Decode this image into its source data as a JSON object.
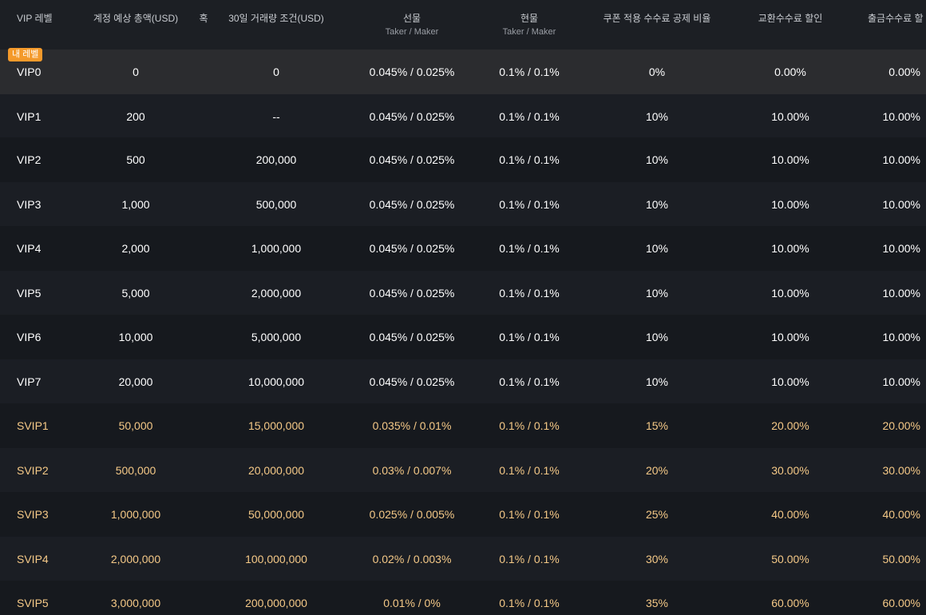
{
  "columns": {
    "level": "VIP 레벨",
    "assets": "계정 예상 총액(USD)",
    "or": "혹",
    "volume": "30일 거래량 조건(USD)",
    "futures": "선물",
    "futures_sub": "Taker / Maker",
    "spot": "현물",
    "spot_sub": "Taker / Maker",
    "coupon": "쿠폰 적용 수수료 공제 비율",
    "exchange": "교환수수료 할인",
    "withdraw": "출금수수료 할"
  },
  "current_badge": "내 레벨",
  "rows": [
    {
      "level": "VIP0",
      "assets": "0",
      "volume": "0",
      "futures": "0.045% / 0.025%",
      "spot": "0.1% / 0.1%",
      "coupon": "0%",
      "exchange": "0.00%",
      "withdraw": "0.00%"
    },
    {
      "level": "VIP1",
      "assets": "200",
      "volume": "--",
      "futures": "0.045% / 0.025%",
      "spot": "0.1% / 0.1%",
      "coupon": "10%",
      "exchange": "10.00%",
      "withdraw": "10.00%"
    },
    {
      "level": "VIP2",
      "assets": "500",
      "volume": "200,000",
      "futures": "0.045% / 0.025%",
      "spot": "0.1% / 0.1%",
      "coupon": "10%",
      "exchange": "10.00%",
      "withdraw": "10.00%"
    },
    {
      "level": "VIP3",
      "assets": "1,000",
      "volume": "500,000",
      "futures": "0.045% / 0.025%",
      "spot": "0.1% / 0.1%",
      "coupon": "10%",
      "exchange": "10.00%",
      "withdraw": "10.00%"
    },
    {
      "level": "VIP4",
      "assets": "2,000",
      "volume": "1,000,000",
      "futures": "0.045% / 0.025%",
      "spot": "0.1% / 0.1%",
      "coupon": "10%",
      "exchange": "10.00%",
      "withdraw": "10.00%"
    },
    {
      "level": "VIP5",
      "assets": "5,000",
      "volume": "2,000,000",
      "futures": "0.045% / 0.025%",
      "spot": "0.1% / 0.1%",
      "coupon": "10%",
      "exchange": "10.00%",
      "withdraw": "10.00%"
    },
    {
      "level": "VIP6",
      "assets": "10,000",
      "volume": "5,000,000",
      "futures": "0.045% / 0.025%",
      "spot": "0.1% / 0.1%",
      "coupon": "10%",
      "exchange": "10.00%",
      "withdraw": "10.00%"
    },
    {
      "level": "VIP7",
      "assets": "20,000",
      "volume": "10,000,000",
      "futures": "0.045% / 0.025%",
      "spot": "0.1% / 0.1%",
      "coupon": "10%",
      "exchange": "10.00%",
      "withdraw": "10.00%"
    },
    {
      "level": "SVIP1",
      "assets": "50,000",
      "volume": "15,000,000",
      "futures": "0.035% / 0.01%",
      "spot": "0.1% / 0.1%",
      "coupon": "15%",
      "exchange": "20.00%",
      "withdraw": "20.00%"
    },
    {
      "level": "SVIP2",
      "assets": "500,000",
      "volume": "20,000,000",
      "futures": "0.03% / 0.007%",
      "spot": "0.1% / 0.1%",
      "coupon": "20%",
      "exchange": "30.00%",
      "withdraw": "30.00%"
    },
    {
      "level": "SVIP3",
      "assets": "1,000,000",
      "volume": "50,000,000",
      "futures": "0.025% / 0.005%",
      "spot": "0.1% / 0.1%",
      "coupon": "25%",
      "exchange": "40.00%",
      "withdraw": "40.00%"
    },
    {
      "level": "SVIP4",
      "assets": "2,000,000",
      "volume": "100,000,000",
      "futures": "0.02% / 0.003%",
      "spot": "0.1% / 0.1%",
      "coupon": "30%",
      "exchange": "50.00%",
      "withdraw": "50.00%"
    },
    {
      "level": "SVIP5",
      "assets": "3,000,000",
      "volume": "200,000,000",
      "futures": "0.01% / 0%",
      "spot": "0.1% / 0.1%",
      "coupon": "35%",
      "exchange": "60.00%",
      "withdraw": "60.00%"
    }
  ],
  "colors": {
    "background": "#16191e",
    "row_alt": "#1b1e24",
    "current_row": "#2b2c2f",
    "svip_text": "#f5c987",
    "badge": "#f49a2b"
  }
}
